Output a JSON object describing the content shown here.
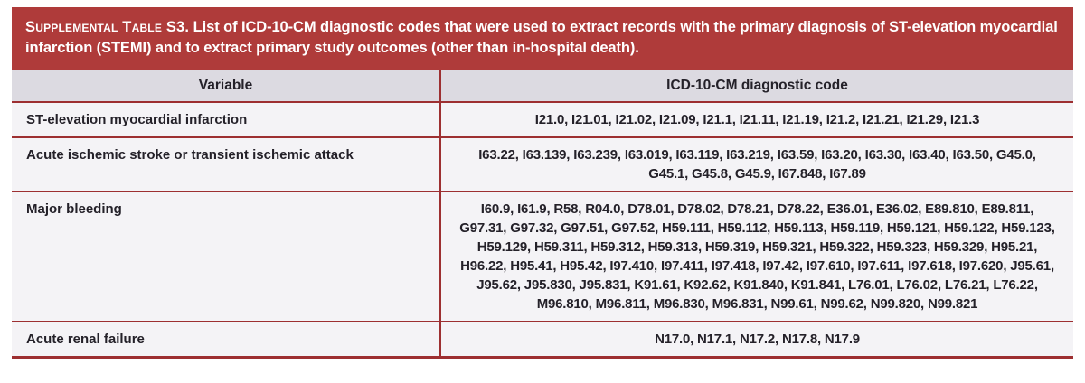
{
  "title": {
    "label": "Supplemental Table S3.",
    "rest": " List of ICD-10-CM diagnostic codes that were used to extract records with the primary diagnosis of ST-elevation myocardial infarction (STEMI) and to extract primary study outcomes (other than in-hospital death)."
  },
  "table": {
    "columns": [
      "Variable",
      "ICD-10-CM diagnostic code"
    ],
    "rows": [
      {
        "variable": "ST-elevation myocardial infarction",
        "codes": "I21.0, I21.01, I21.02, I21.09, I21.1, I21.11, I21.19, I21.2, I21.21, I21.29, I21.3"
      },
      {
        "variable": "Acute ischemic stroke or transient ischemic attack",
        "codes": "I63.22, I63.139, I63.239, I63.019, I63.119, I63.219, I63.59, I63.20, I63.30, I63.40, I63.50, G45.0, G45.1, G45.8, G45.9, I67.848, I67.89"
      },
      {
        "variable": "Major bleeding",
        "codes": "I60.9, I61.9, R58, R04.0, D78.01, D78.02, D78.21, D78.22, E36.01, E36.02, E89.810, E89.811, G97.31, G97.32, G97.51, G97.52, H59.111, H59.112, H59.113, H59.119, H59.121, H59.122, H59.123, H59.129, H59.311, H59.312, H59.313, H59.319, H59.321, H59.322, H59.323, H59.329, H95.21, H96.22, H95.41, H95.42, I97.410, I97.411, I97.418, I97.42, I97.610, I97.611, I97.618, I97.620, J95.61, J95.62, J95.830, J95.831, K91.61, K92.62, K91.840, K91.841, L76.01, L76.02, L76.21, L76.22, M96.810, M96.811, M96.830, M96.831, N99.61, N99.62, N99.820, N99.821"
      },
      {
        "variable": "Acute renal failure",
        "codes": "N17.0, N17.1, N17.2, N17.8, N17.9"
      }
    ]
  },
  "colors": {
    "title_band_bg": "#AF3B3A",
    "title_text": "#FFFFFF",
    "border_red": "#9D2F31",
    "column_header_bg": "#DCDAE1",
    "row_bg": "#F4F3F6",
    "body_text": "#242129"
  }
}
